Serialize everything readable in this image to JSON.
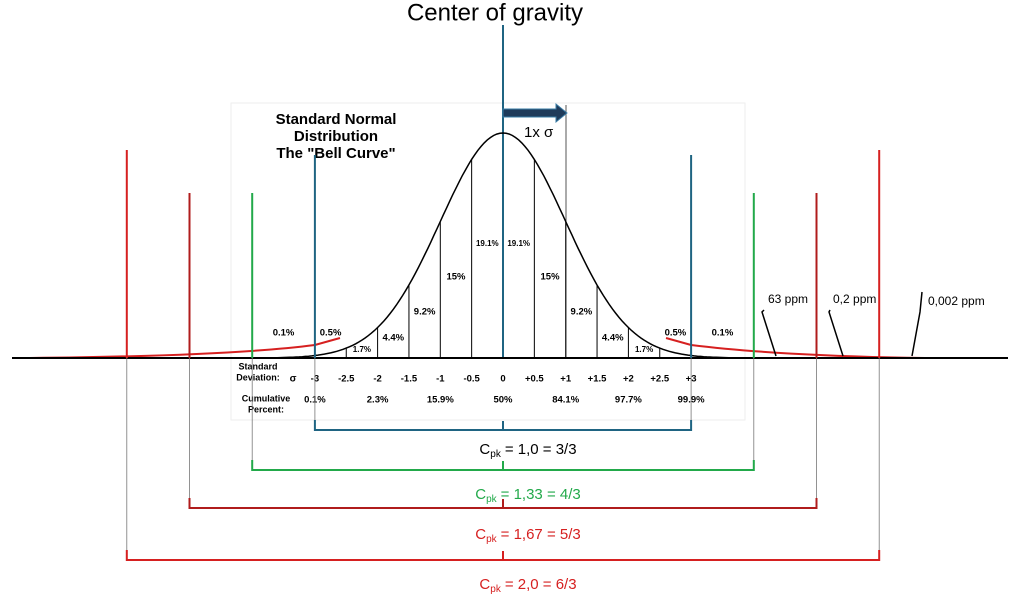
{
  "title": "Center of gravity",
  "inset": {
    "title_lines": [
      "Standard Normal",
      "Distribution",
      "The \"Bell Curve\""
    ],
    "sigma_note": "1x σ",
    "segment_labels": [
      "0.1%",
      "0.5%",
      "1.7%",
      "4.4%",
      "9.2%",
      "15%",
      "19.1%",
      "19.1%",
      "15%",
      "9.2%",
      "4.4%",
      "1.7%",
      "0.5%",
      "0.1%"
    ],
    "axis_label_lines": [
      "Standard",
      "Deviation:"
    ],
    "axis_symbol": "σ",
    "axis_ticks": [
      "-3",
      "-2.5",
      "-2",
      "-1.5",
      "-1",
      "-0.5",
      "0",
      "+0.5",
      "+1",
      "+1.5",
      "+2",
      "+2.5",
      "+3"
    ],
    "cumulative_label_lines": [
      "Cumulative",
      "Percent:"
    ],
    "cumulative_values": [
      "0.1%",
      "2.3%",
      "15.9%",
      "50%",
      "84.1%",
      "97.7%",
      "99.9%"
    ]
  },
  "ppm_labels": [
    "63 ppm",
    "0,2 ppm",
    "0,002 ppm"
  ],
  "cpk": [
    {
      "symbol": "C",
      "subscript": "pk",
      "expression": "= 1,0 = 3/3"
    },
    {
      "symbol": "C",
      "subscript": "pk",
      "expression": "= 1,33 = 4/3"
    },
    {
      "symbol": "C",
      "subscript": "pk",
      "expression": "= 1,67 = 5/3"
    },
    {
      "symbol": "C",
      "subscript": "pk",
      "expression": "= 2,0 = 6/3"
    }
  ]
}
